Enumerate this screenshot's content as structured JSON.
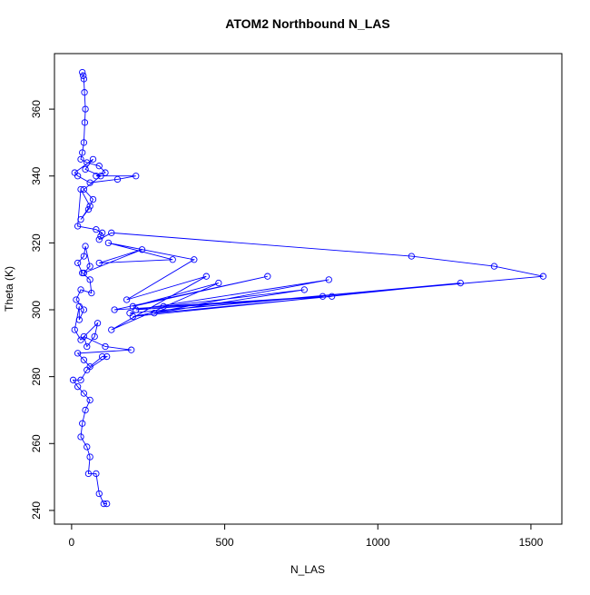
{
  "chart_data": {
    "type": "line",
    "title": "ATOM2 Northbound N_LAS",
    "x_label": "N_LAS",
    "y_label": "Theta (K)",
    "marker": "open-circle",
    "series": [
      {
        "color": "#0000ff",
        "x": [
          35,
          38,
          40,
          42,
          45,
          43,
          40,
          35,
          30,
          50,
          90,
          110,
          80,
          210,
          150,
          60,
          20,
          10,
          70,
          45,
          95,
          40,
          70,
          55,
          30,
          60,
          30,
          20,
          80,
          100,
          95,
          90,
          130,
          1110,
          1380,
          1540,
          190,
          1270,
          200,
          840,
          210,
          820,
          300,
          760,
          270,
          850,
          140,
          640,
          200,
          480,
          130,
          440,
          180,
          400,
          120,
          330,
          90,
          230,
          40,
          60,
          45,
          40,
          20,
          35,
          60,
          65,
          30,
          15,
          40,
          25,
          25,
          10,
          30,
          85,
          75,
          50,
          40,
          110,
          195,
          20,
          40,
          60,
          100,
          115,
          50,
          30,
          5,
          20,
          40,
          60,
          45,
          35,
          30,
          50,
          60,
          55,
          80,
          90,
          105,
          115
        ],
        "values": [
          371,
          370,
          369,
          365,
          360,
          356,
          350,
          347,
          345,
          344,
          343,
          341,
          340,
          340,
          339,
          338,
          340,
          341,
          345,
          342,
          340,
          336,
          333,
          330,
          327,
          331,
          336,
          325,
          324,
          323,
          322,
          321,
          323,
          316,
          313,
          310,
          299,
          308,
          298,
          309,
          300,
          304,
          301,
          306,
          299,
          304,
          300,
          310,
          301,
          308,
          294,
          310,
          303,
          315,
          320,
          315,
          314,
          318,
          311,
          313,
          319,
          316,
          314,
          311,
          309,
          305,
          306,
          303,
          300,
          297,
          301,
          294,
          291,
          296,
          292,
          289,
          292,
          289,
          288,
          287,
          285,
          283,
          286,
          286,
          282,
          279,
          279,
          277,
          275,
          273,
          270,
          266,
          262,
          259,
          256,
          251,
          251,
          245,
          242,
          242
        ]
      }
    ],
    "xlim": [
      -56,
      1601
    ],
    "ylim": [
      235.9,
      376.6
    ],
    "xticks": [
      0,
      500,
      1000,
      1500
    ],
    "yticks": [
      240,
      260,
      280,
      300,
      320,
      340,
      360
    ]
  }
}
